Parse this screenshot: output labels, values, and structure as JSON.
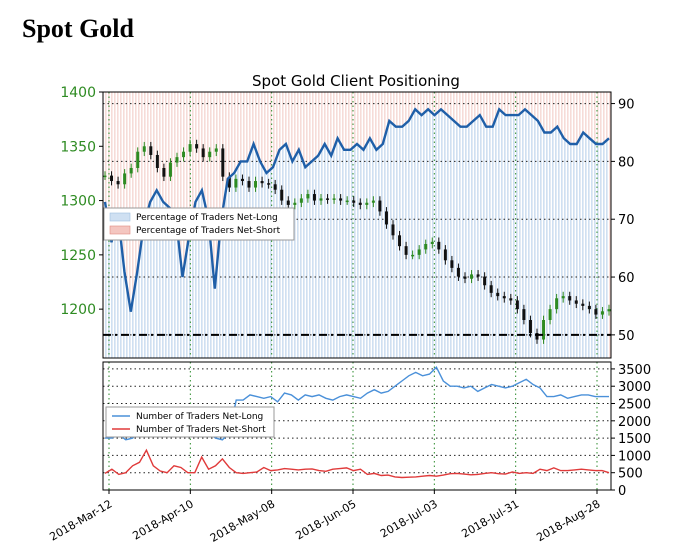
{
  "page": {
    "title": "Spot Gold"
  },
  "chart_data": {
    "type": "line",
    "title": "Spot Gold Client Positioning",
    "x_labels": [
      "2018-Mar-12",
      "2018-Apr-10",
      "2018-May-08",
      "2018-Jun-05",
      "2018-Jul-03",
      "2018-Jul-31",
      "2018-Aug-28"
    ],
    "price_axis": {
      "ticks": [
        1200,
        1250,
        1300,
        1350,
        1400
      ],
      "ylim": [
        1155,
        1400
      ]
    },
    "pct_axis": {
      "ticks": [
        50,
        60,
        70,
        80,
        90
      ],
      "ylim": [
        46,
        92
      ]
    },
    "count_axis": {
      "ticks": [
        0,
        500,
        1000,
        1500,
        2000,
        2500,
        3000,
        3500
      ],
      "ylim": [
        0,
        3700
      ]
    },
    "reference_level_pct": 50,
    "legend_top": [
      "Percentage of Traders Net-Long",
      "Percentage of Traders Net-Short"
    ],
    "legend_bottom": [
      "Number of Traders Net-Long",
      "Number of Traders Net-Short"
    ],
    "colors": {
      "pct_line": "#1f5fa8",
      "net_long_fill": "#cfe0f2",
      "net_short_fill": "#f4c6c0",
      "count_long": "#4a90d9",
      "count_short": "#e03a3a",
      "grid": "#2a8a2a",
      "candle_up": "#2e8b22",
      "candle_down": "#111111"
    },
    "price_series": [
      1323,
      1318,
      1315,
      1325,
      1330,
      1345,
      1350,
      1342,
      1330,
      1322,
      1335,
      1340,
      1345,
      1352,
      1348,
      1340,
      1345,
      1348,
      1322,
      1312,
      1320,
      1318,
      1312,
      1318,
      1316,
      1315,
      1310,
      1300,
      1296,
      1298,
      1302,
      1306,
      1300,
      1302,
      1301,
      1302,
      1300,
      1300,
      1298,
      1296,
      1298,
      1300,
      1290,
      1278,
      1268,
      1258,
      1250,
      1250,
      1255,
      1260,
      1262,
      1255,
      1245,
      1238,
      1230,
      1228,
      1232,
      1230,
      1222,
      1215,
      1212,
      1210,
      1208,
      1200,
      1190,
      1178,
      1172,
      1190,
      1200,
      1210,
      1212,
      1208,
      1205,
      1203,
      1200,
      1195,
      1198,
      1200
    ],
    "pct_long_series": [
      73,
      66,
      71,
      61,
      54,
      61,
      69,
      73,
      75,
      73,
      72,
      70,
      60,
      67,
      73,
      75,
      70,
      58,
      70,
      77,
      78,
      80,
      80,
      83,
      80,
      78,
      79,
      82,
      83,
      80,
      82,
      79,
      80,
      81,
      83,
      81,
      84,
      82,
      82,
      83,
      82,
      84,
      82,
      83,
      87,
      86,
      86,
      87,
      89,
      88,
      89,
      88,
      89,
      88,
      87,
      86,
      86,
      87,
      88,
      86,
      86,
      89,
      88,
      88,
      88,
      89,
      88,
      87,
      85,
      85,
      86,
      84,
      83,
      83,
      85,
      84,
      83,
      83,
      84
    ],
    "count_long_series": [
      1500,
      1500,
      1600,
      1450,
      1500,
      1700,
      1950,
      1800,
      1650,
      1800,
      1800,
      1750,
      1700,
      1650,
      1850,
      1650,
      1500,
      1450,
      1650,
      2600,
      2600,
      2750,
      2700,
      2650,
      2700,
      2550,
      2800,
      2750,
      2600,
      2750,
      2700,
      2750,
      2650,
      2600,
      2700,
      2750,
      2700,
      2650,
      2800,
      2900,
      2800,
      2850,
      3000,
      3150,
      3300,
      3400,
      3300,
      3350,
      3550,
      3150,
      3000,
      3000,
      2950,
      3000,
      2850,
      2950,
      3050,
      3000,
      2950,
      3000,
      3100,
      3200,
      3050,
      2950,
      2700,
      2700,
      2750,
      2650,
      2700,
      2750,
      2750,
      2700,
      2700,
      2700
    ],
    "count_short_series": [
      480,
      600,
      450,
      500,
      700,
      800,
      1150,
      700,
      550,
      500,
      700,
      650,
      500,
      500,
      950,
      600,
      700,
      900,
      650,
      500,
      480,
      500,
      520,
      650,
      560,
      580,
      620,
      600,
      580,
      600,
      610,
      560,
      540,
      600,
      620,
      640,
      560,
      600,
      450,
      480,
      420,
      430,
      380,
      360,
      370,
      380,
      400,
      420,
      400,
      430,
      470,
      480,
      460,
      440,
      450,
      480,
      500,
      470,
      460,
      520,
      480,
      500,
      480,
      600,
      560,
      640,
      560,
      560,
      580,
      600,
      580,
      560,
      560,
      500
    ]
  }
}
